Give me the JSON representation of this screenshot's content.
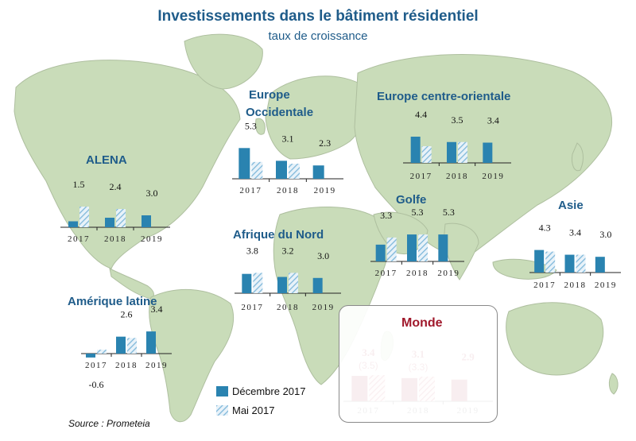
{
  "title": "Investissements dans le bâtiment résidentiel",
  "subtitle": "taux de croissance",
  "legend": [
    "Décembre 2017",
    "Mai 2017"
  ],
  "source": "Source : Prometeia",
  "colors": {
    "solid": "#2a83b0",
    "hatched": "#7fb8da",
    "world_solid": "#a0192c",
    "world_label": "#a0192c",
    "title": "#1f5c8a",
    "land": "#c9dcb9"
  },
  "chart_data": [
    {
      "type": "bar",
      "title": "ALENA",
      "categories": [
        "2017",
        "2018",
        "2019"
      ],
      "series": [
        {
          "name": "Décembre 2017",
          "values": [
            1.5,
            2.4,
            3.0
          ]
        },
        {
          "name": "Mai 2017",
          "values": [
            5.2,
            4.6,
            null
          ]
        }
      ],
      "value_labels": [
        "1.5",
        "2.4",
        "3.0"
      ],
      "ylim": [
        0,
        6
      ]
    },
    {
      "type": "bar",
      "title": "Europe Occidentale",
      "title_lines": [
        "Europe",
        "Occidentale"
      ],
      "categories": [
        "2017",
        "2018",
        "2019"
      ],
      "series": [
        {
          "name": "Décembre 2017",
          "values": [
            5.3,
            3.1,
            2.3
          ]
        },
        {
          "name": "Mai 2017",
          "values": [
            2.9,
            2.6,
            null
          ]
        }
      ],
      "value_labels": [
        "5.3",
        "3.1",
        "2.3"
      ],
      "ylim": [
        0,
        6
      ]
    },
    {
      "type": "bar",
      "title": "Europe centre-orientale",
      "categories": [
        "2017",
        "2018",
        "2019"
      ],
      "series": [
        {
          "name": "Décembre 2017",
          "values": [
            4.4,
            3.5,
            3.4
          ]
        },
        {
          "name": "Mai 2017",
          "values": [
            2.8,
            3.5,
            null
          ]
        }
      ],
      "value_labels": [
        "4.4",
        "3.5",
        "3.4"
      ],
      "ylim": [
        0,
        6
      ]
    },
    {
      "type": "bar",
      "title": "Golfe",
      "categories": [
        "2017",
        "2018",
        "2019"
      ],
      "series": [
        {
          "name": "Décembre 2017",
          "values": [
            3.3,
            5.3,
            5.3
          ]
        },
        {
          "name": "Mai 2017",
          "values": [
            4.7,
            5.3,
            null
          ]
        }
      ],
      "value_labels": [
        "3.3",
        "5.3",
        "5.3"
      ],
      "ylim": [
        0,
        7
      ]
    },
    {
      "type": "bar",
      "title": "Asie",
      "categories": [
        "2017",
        "2018",
        "2019"
      ],
      "series": [
        {
          "name": "Décembre 2017",
          "values": [
            4.3,
            3.4,
            3.0
          ]
        },
        {
          "name": "Mai 2017",
          "values": [
            4.0,
            3.4,
            null
          ]
        }
      ],
      "value_labels": [
        "4.3",
        "3.4",
        "3.0"
      ],
      "ylim": [
        0,
        6
      ]
    },
    {
      "type": "bar",
      "title": "Afrique du Nord",
      "categories": [
        "2017",
        "2018",
        "2019"
      ],
      "series": [
        {
          "name": "Décembre 2017",
          "values": [
            3.8,
            3.2,
            3.0
          ]
        },
        {
          "name": "Mai 2017",
          "values": [
            4.0,
            4.0,
            null
          ]
        }
      ],
      "value_labels": [
        "3.8",
        "3.2",
        "3.0"
      ],
      "ylim": [
        0,
        6
      ]
    },
    {
      "type": "bar",
      "title": "Amérique latine",
      "categories": [
        "2017",
        "2018",
        "2019"
      ],
      "series": [
        {
          "name": "Décembre 2017",
          "values": [
            -0.6,
            2.6,
            3.4
          ]
        },
        {
          "name": "Mai 2017",
          "values": [
            0.6,
            2.4,
            null
          ]
        }
      ],
      "value_labels": [
        "-0.6",
        "2.6",
        "3.4"
      ],
      "ylim": [
        -2,
        6
      ]
    },
    {
      "type": "bar",
      "title": "Monde",
      "categories": [
        "2017",
        "2018",
        "2019"
      ],
      "series": [
        {
          "name": "Décembre 2017",
          "values": [
            3.4,
            3.1,
            2.9
          ]
        },
        {
          "name": "Mai 2017",
          "values": [
            3.5,
            3.3,
            null
          ]
        }
      ],
      "value_labels": [
        "3.4",
        "3.1",
        "2.9"
      ],
      "secondary_labels": [
        "(3.5)",
        "(3.3)",
        ""
      ],
      "ylim": [
        0,
        6
      ]
    }
  ]
}
